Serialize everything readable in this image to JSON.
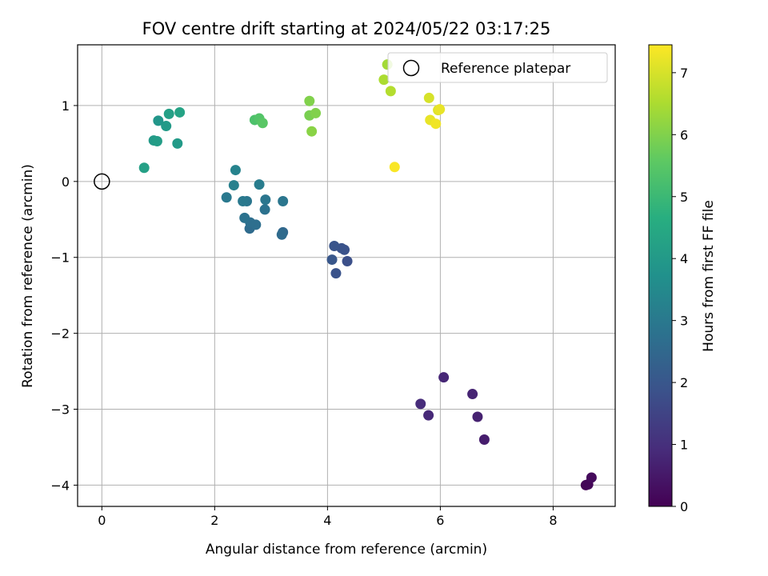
{
  "chart_data": {
    "type": "scatter",
    "title": "FOV centre drift starting at 2024/05/22 03:17:25",
    "xlabel": "Angular distance from reference (arcmin)",
    "ylabel": "Rotation from reference (arcmin)",
    "xlim": [
      -0.43,
      9.1
    ],
    "ylim": [
      -4.28,
      1.8
    ],
    "xticks": [
      0,
      2,
      4,
      6,
      8
    ],
    "yticks": [
      -4,
      -3,
      -2,
      -1,
      0,
      1
    ],
    "xtick_labels": [
      "0",
      "2",
      "4",
      "6",
      "8"
    ],
    "ytick_labels": [
      "−4",
      "−3",
      "−2",
      "−1",
      "0",
      "1"
    ],
    "grid": true,
    "colormap": "viridis",
    "colorbar": {
      "label": "Hours from first FF file",
      "range": [
        0,
        7.45
      ],
      "ticks": [
        0,
        1,
        2,
        3,
        4,
        5,
        6,
        7
      ],
      "tick_labels": [
        "0",
        "1",
        "2",
        "3",
        "4",
        "5",
        "6",
        "7"
      ]
    },
    "legend": {
      "placement": "top-right",
      "entries": [
        "Reference platepar"
      ]
    },
    "reference_point": {
      "x": 0,
      "y": 0
    },
    "points": [
      {
        "x": 8.58,
        "y": -4.0,
        "c": 0.05
      },
      {
        "x": 8.62,
        "y": -3.99,
        "c": 0.1
      },
      {
        "x": 8.68,
        "y": -3.9,
        "c": 0.2
      },
      {
        "x": 6.78,
        "y": -3.4,
        "c": 0.6
      },
      {
        "x": 6.66,
        "y": -3.1,
        "c": 0.7
      },
      {
        "x": 6.57,
        "y": -2.8,
        "c": 0.75
      },
      {
        "x": 6.06,
        "y": -2.58,
        "c": 0.8
      },
      {
        "x": 5.79,
        "y": -3.08,
        "c": 0.85
      },
      {
        "x": 5.65,
        "y": -2.93,
        "c": 0.9
      },
      {
        "x": 4.35,
        "y": -1.05,
        "c": 1.8
      },
      {
        "x": 4.3,
        "y": -0.9,
        "c": 1.85
      },
      {
        "x": 4.25,
        "y": -0.88,
        "c": 1.9
      },
      {
        "x": 4.15,
        "y": -1.21,
        "c": 1.9
      },
      {
        "x": 4.12,
        "y": -0.85,
        "c": 1.95
      },
      {
        "x": 4.08,
        "y": -1.03,
        "c": 2.0
      },
      {
        "x": 3.21,
        "y": -0.67,
        "c": 2.5
      },
      {
        "x": 3.19,
        "y": -0.7,
        "c": 2.6
      },
      {
        "x": 2.62,
        "y": -0.62,
        "c": 2.6
      },
      {
        "x": 2.73,
        "y": -0.57,
        "c": 2.7
      },
      {
        "x": 2.63,
        "y": -0.54,
        "c": 2.7
      },
      {
        "x": 2.53,
        "y": -0.48,
        "c": 2.8
      },
      {
        "x": 2.89,
        "y": -0.37,
        "c": 2.8
      },
      {
        "x": 3.21,
        "y": -0.26,
        "c": 2.9
      },
      {
        "x": 2.9,
        "y": -0.24,
        "c": 2.9
      },
      {
        "x": 2.57,
        "y": -0.26,
        "c": 2.9
      },
      {
        "x": 2.5,
        "y": -0.26,
        "c": 3.0
      },
      {
        "x": 2.21,
        "y": -0.21,
        "c": 3.0
      },
      {
        "x": 2.34,
        "y": -0.05,
        "c": 3.2
      },
      {
        "x": 2.79,
        "y": -0.04,
        "c": 3.1
      },
      {
        "x": 2.37,
        "y": 0.15,
        "c": 3.3
      },
      {
        "x": 0.75,
        "y": 0.18,
        "c": 4.2
      },
      {
        "x": 0.92,
        "y": 0.54,
        "c": 4.0
      },
      {
        "x": 0.98,
        "y": 0.53,
        "c": 4.1
      },
      {
        "x": 1.34,
        "y": 0.5,
        "c": 4.0
      },
      {
        "x": 1.14,
        "y": 0.73,
        "c": 4.0
      },
      {
        "x": 1.0,
        "y": 0.8,
        "c": 3.9
      },
      {
        "x": 1.19,
        "y": 0.89,
        "c": 4.2
      },
      {
        "x": 1.38,
        "y": 0.91,
        "c": 4.3
      },
      {
        "x": 2.71,
        "y": 0.81,
        "c": 5.3
      },
      {
        "x": 2.79,
        "y": 0.83,
        "c": 5.4
      },
      {
        "x": 2.85,
        "y": 0.77,
        "c": 5.5
      },
      {
        "x": 3.68,
        "y": 1.06,
        "c": 6.0
      },
      {
        "x": 3.68,
        "y": 0.87,
        "c": 5.9
      },
      {
        "x": 3.79,
        "y": 0.9,
        "c": 6.0
      },
      {
        "x": 3.72,
        "y": 0.66,
        "c": 6.1
      },
      {
        "x": 5.06,
        "y": 1.54,
        "c": 6.4
      },
      {
        "x": 5.0,
        "y": 1.34,
        "c": 6.5
      },
      {
        "x": 5.12,
        "y": 1.19,
        "c": 6.6
      },
      {
        "x": 5.8,
        "y": 1.1,
        "c": 7.0
      },
      {
        "x": 5.96,
        "y": 0.94,
        "c": 7.1
      },
      {
        "x": 5.99,
        "y": 0.95,
        "c": 7.2
      },
      {
        "x": 5.82,
        "y": 0.81,
        "c": 7.2
      },
      {
        "x": 5.92,
        "y": 0.76,
        "c": 7.3
      },
      {
        "x": 5.19,
        "y": 0.19,
        "c": 7.4
      }
    ]
  }
}
